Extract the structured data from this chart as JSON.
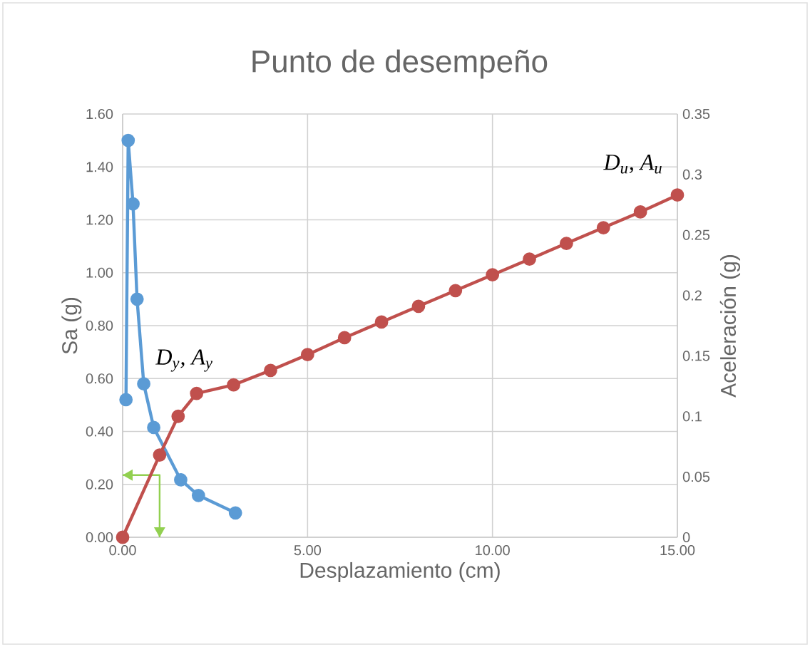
{
  "chart_data": {
    "type": "line",
    "title": "Punto de desempeño",
    "xlabel": "Desplazamiento (cm)",
    "ylabel": "Sa (g)",
    "y2label": "Aceleración (g)",
    "xlim": [
      0,
      15
    ],
    "xticks": [
      {
        "value": 0,
        "label": "0.00"
      },
      {
        "value": 5,
        "label": "5.00"
      },
      {
        "value": 10,
        "label": "10.00"
      },
      {
        "value": 15,
        "label": "15.00"
      }
    ],
    "ylim": [
      0,
      1.6
    ],
    "yticks": [
      {
        "value": 0,
        "label": "0.00"
      },
      {
        "value": 0.2,
        "label": "0.20"
      },
      {
        "value": 0.4,
        "label": "0.40"
      },
      {
        "value": 0.6,
        "label": "0.60"
      },
      {
        "value": 0.8,
        "label": "0.80"
      },
      {
        "value": 1.0,
        "label": "1.00"
      },
      {
        "value": 1.2,
        "label": "1.20"
      },
      {
        "value": 1.4,
        "label": "1.40"
      },
      {
        "value": 1.6,
        "label": "1.60"
      }
    ],
    "y2lim": [
      0,
      0.35
    ],
    "y2ticks": [
      0,
      0.05,
      0.1,
      0.15,
      0.2,
      0.25,
      0.3,
      0.35
    ],
    "grid": true,
    "marker": "circle",
    "series": [
      {
        "color": "#5b9bd5",
        "x": [
          0.09,
          0.15,
          0.28,
          0.39,
          0.57,
          0.84,
          1.57,
          2.05,
          3.05
        ],
        "values": [
          0.52,
          1.5,
          1.26,
          0.9,
          0.58,
          0.415,
          0.217,
          0.158,
          0.092
        ]
      },
      {
        "color": "#c0504d",
        "axis": "y2",
        "x": [
          0,
          1,
          1.5,
          2,
          3,
          4,
          5,
          6,
          7,
          8,
          9,
          10,
          11,
          12,
          13,
          14,
          15
        ],
        "values": [
          0,
          0.068,
          0.1,
          0.119,
          0.126,
          0.138,
          0.151,
          0.165,
          0.178,
          0.191,
          0.204,
          0.217,
          0.23,
          0.243,
          0.256,
          0.269,
          0.283
        ]
      },
      {
        "color": "#92d050",
        "marker": "none",
        "x": [
          0,
          1,
          1
        ],
        "values": [
          0.235,
          0.235,
          0
        ]
      }
    ],
    "annotations": [
      "D$_{y}$, A$_{y}$",
      "D$_{u}$, A$_{u}$"
    ]
  }
}
